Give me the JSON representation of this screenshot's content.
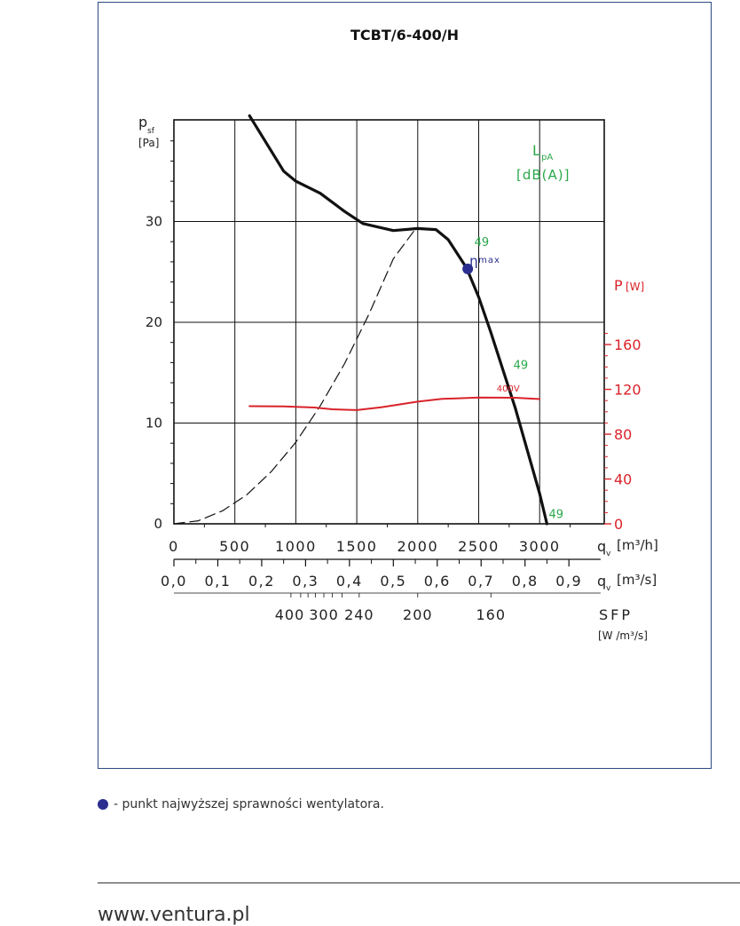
{
  "chart_data": {
    "type": "line",
    "title": "TCBT/6-400/H",
    "x_unit_label": "qv [m³/h]",
    "x2_unit_label": "qv [m³/s]",
    "sfp_label": "SFP",
    "sfp_unit": "[W /m³/s]",
    "ylabel": "psf",
    "yunit": "[Pa]",
    "y2label": "P",
    "y2unit": "[W]",
    "noise_label": "LpA",
    "noise_unit": "[dB(A)]",
    "xlim": [
      0,
      3500
    ],
    "ylim": [
      0,
      40
    ],
    "y2lim": [
      0,
      200
    ],
    "x_ticks": [
      0,
      500,
      1000,
      1500,
      2000,
      2500,
      3000
    ],
    "x2_ticks": [
      "0,0",
      "0,1",
      "0,2",
      "0,3",
      "0,4",
      "0,5",
      "0,6",
      "0,7",
      "0,8",
      "0,9"
    ],
    "y_ticks": [
      0,
      10,
      20,
      30
    ],
    "y2_ticks": [
      0,
      40,
      80,
      120,
      160
    ],
    "sfp_ticks": [
      {
        "label": "400",
        "q": 950
      },
      {
        "label": "300",
        "q": 1230
      },
      {
        "label": "240",
        "q": 1520
      },
      {
        "label": "200",
        "q": 2000
      },
      {
        "label": "160",
        "q": 2600
      }
    ],
    "series": [
      {
        "kind": "pressure",
        "color": "#111111",
        "points": [
          [
            620,
            40.5
          ],
          [
            900,
            35
          ],
          [
            1000,
            34
          ],
          [
            1200,
            32.8
          ],
          [
            1400,
            31
          ],
          [
            1550,
            29.8
          ],
          [
            1800,
            29.1
          ],
          [
            2000,
            29.3
          ],
          [
            2150,
            29.2
          ],
          [
            2250,
            28.2
          ],
          [
            2400,
            25.4
          ],
          [
            2500,
            22.5
          ],
          [
            2600,
            19
          ],
          [
            2800,
            11.5
          ],
          [
            3000,
            3
          ],
          [
            3060,
            0
          ]
        ]
      },
      {
        "kind": "system",
        "color": "#111111",
        "dashed": true,
        "points": [
          [
            0,
            0
          ],
          [
            200,
            0.3
          ],
          [
            400,
            1.3
          ],
          [
            600,
            2.9
          ],
          [
            800,
            5.2
          ],
          [
            1000,
            8.1
          ],
          [
            1200,
            11.7
          ],
          [
            1400,
            15.9
          ],
          [
            1600,
            20.8
          ],
          [
            1800,
            26.3
          ],
          [
            1990,
            29.4
          ]
        ]
      },
      {
        "kind": "power",
        "name": "400V",
        "color": "#d9232a",
        "points": [
          [
            620,
            105
          ],
          [
            900,
            104.8
          ],
          [
            1150,
            103.8
          ],
          [
            1300,
            102.2
          ],
          [
            1500,
            101.5
          ],
          [
            1700,
            104
          ],
          [
            2000,
            109
          ],
          [
            2200,
            111.5
          ],
          [
            2500,
            112.7
          ],
          [
            2800,
            112.5
          ],
          [
            3000,
            111.3
          ]
        ]
      }
    ],
    "eta_max": {
      "label": "ηmax",
      "q": 2410,
      "p": 25.3
    },
    "noise_values": [
      {
        "label": "49",
        "q": 2450,
        "p": 28
      },
      {
        "label": "49",
        "q": 2770,
        "p": 15.8
      },
      {
        "label": "49",
        "q": 3060,
        "p": 1
      }
    ],
    "colors": {
      "axis": "#111111",
      "grid": "#111111",
      "power": "#d9232a",
      "noise": "#2aa84a",
      "eta": "#2a2f8f"
    }
  },
  "legend": {
    "text": "- punkt najwyższej sprawności wentylatora."
  },
  "footer": {
    "url": "www.ventura.pl"
  }
}
